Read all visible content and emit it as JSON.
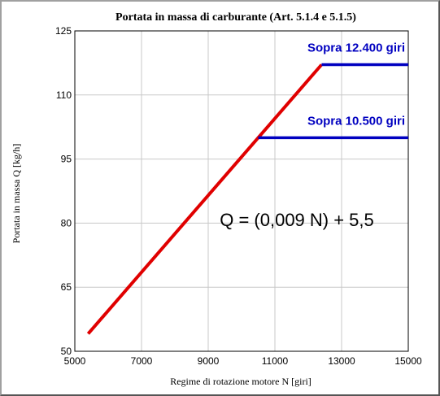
{
  "chart_data": {
    "type": "line",
    "title": "Portata in massa di carburante (Art. 5.1.4 e 5.1.5)",
    "xlabel": "Regime di rotazione motore  N  [giri]",
    "ylabel": "Portata in massa  Q  [kg/h]",
    "xlim": [
      5000,
      15000
    ],
    "ylim": [
      50,
      125
    ],
    "x_ticks": [
      5000,
      7000,
      9000,
      11000,
      13000,
      15000
    ],
    "y_ticks": [
      50,
      65,
      80,
      95,
      110,
      125
    ],
    "grid": true,
    "formula": "Q = (0,009 N) + 5,5",
    "series": [
      {
        "color": "#e00000",
        "x": [
          5400,
          12400
        ],
        "y": [
          54.1,
          117.1
        ]
      },
      {
        "color": "#0000c0",
        "x": [
          10500,
          15000
        ],
        "y": [
          100.0,
          100.0
        ]
      },
      {
        "color": "#0000c0",
        "x": [
          12400,
          15000
        ],
        "y": [
          117.1,
          117.1
        ]
      }
    ],
    "annotations": [
      {
        "text": "Sopra 12.400 giri",
        "color": "#0000c0"
      },
      {
        "text": "Sopra 10.500 giri",
        "color": "#0000c0"
      }
    ]
  }
}
